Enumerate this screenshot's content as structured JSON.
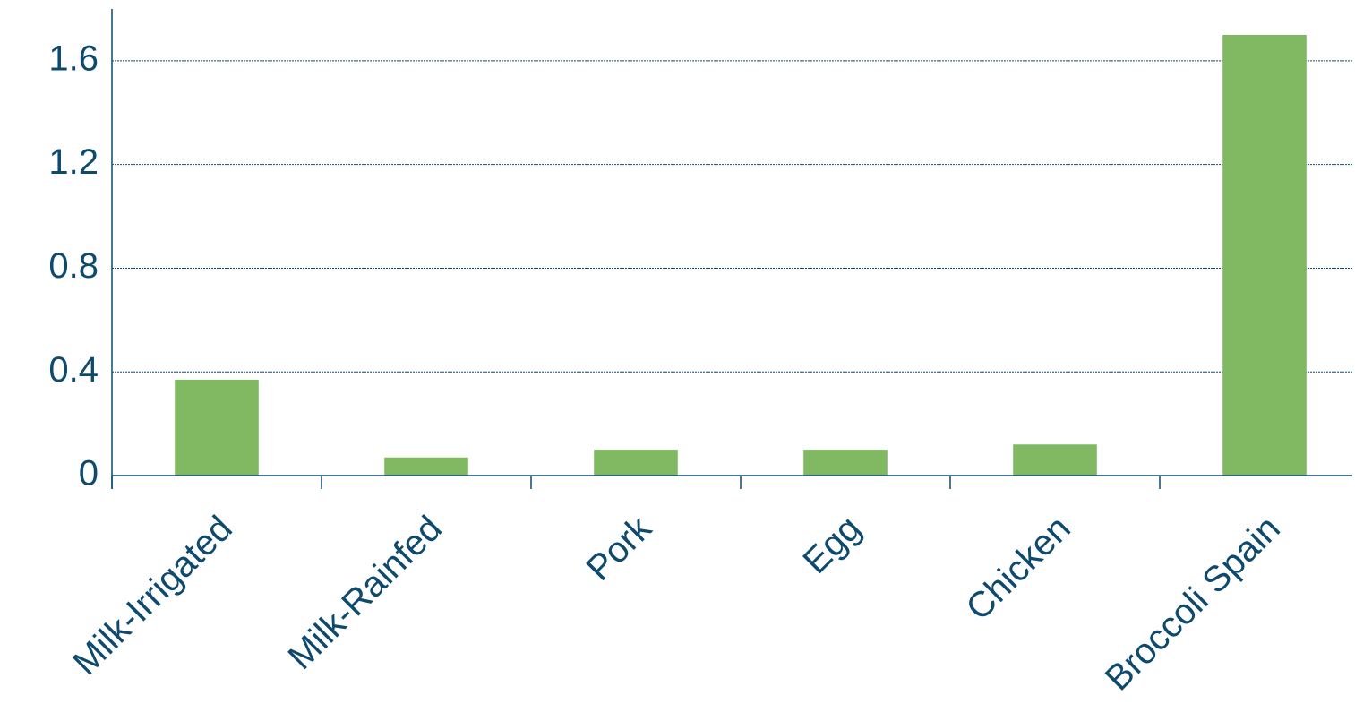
{
  "chart_data": {
    "type": "bar",
    "categories": [
      "Milk-Irrigated",
      "Milk-Rainfed",
      "Pork",
      "Egg",
      "Chicken",
      "Broccoli Spain"
    ],
    "values": [
      0.37,
      0.07,
      0.1,
      0.1,
      0.12,
      1.7
    ],
    "color": "#80b962",
    "ylim": [
      0,
      1.8
    ],
    "yticks": [
      0,
      0.4,
      0.8,
      1.2,
      1.6
    ],
    "grid": true
  }
}
